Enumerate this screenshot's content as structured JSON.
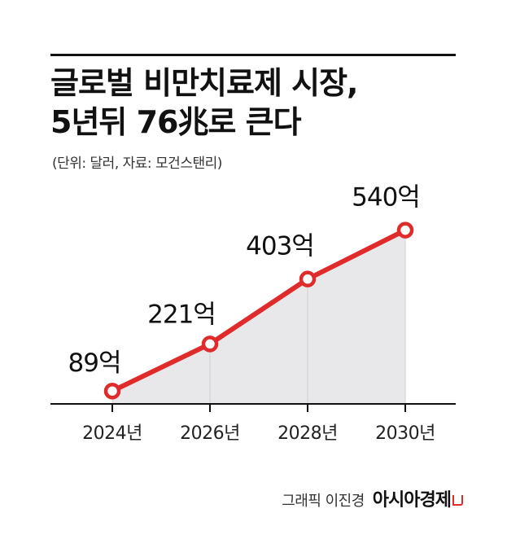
{
  "title_lines": [
    "글로벌 비만치료제 시장,",
    "5년뒤 76兆로 큰다"
  ],
  "unit_note": "(단위: 달러, 자료: 모건스탠리)",
  "credit": "그래픽 이진경",
  "brand": "아시아경제",
  "colors": {
    "line": "#e02b2b",
    "area": "#e8e8ea",
    "axis": "#111111",
    "grid": "#cfcfcf"
  },
  "chart_data": {
    "type": "area",
    "categories": [
      "2024년",
      "2026년",
      "2028년",
      "2030년"
    ],
    "values": [
      89,
      221,
      403,
      540
    ],
    "data_labels": [
      "89억",
      "221억",
      "403억",
      "540억"
    ],
    "series": [
      {
        "name": "",
        "values": [
          89,
          221,
          403,
          540
        ]
      }
    ],
    "title": "글로벌 비만치료제 시장, 5년뒤 76兆로 큰다",
    "xlabel": "",
    "ylabel": "",
    "grid": false,
    "legend": "none"
  }
}
